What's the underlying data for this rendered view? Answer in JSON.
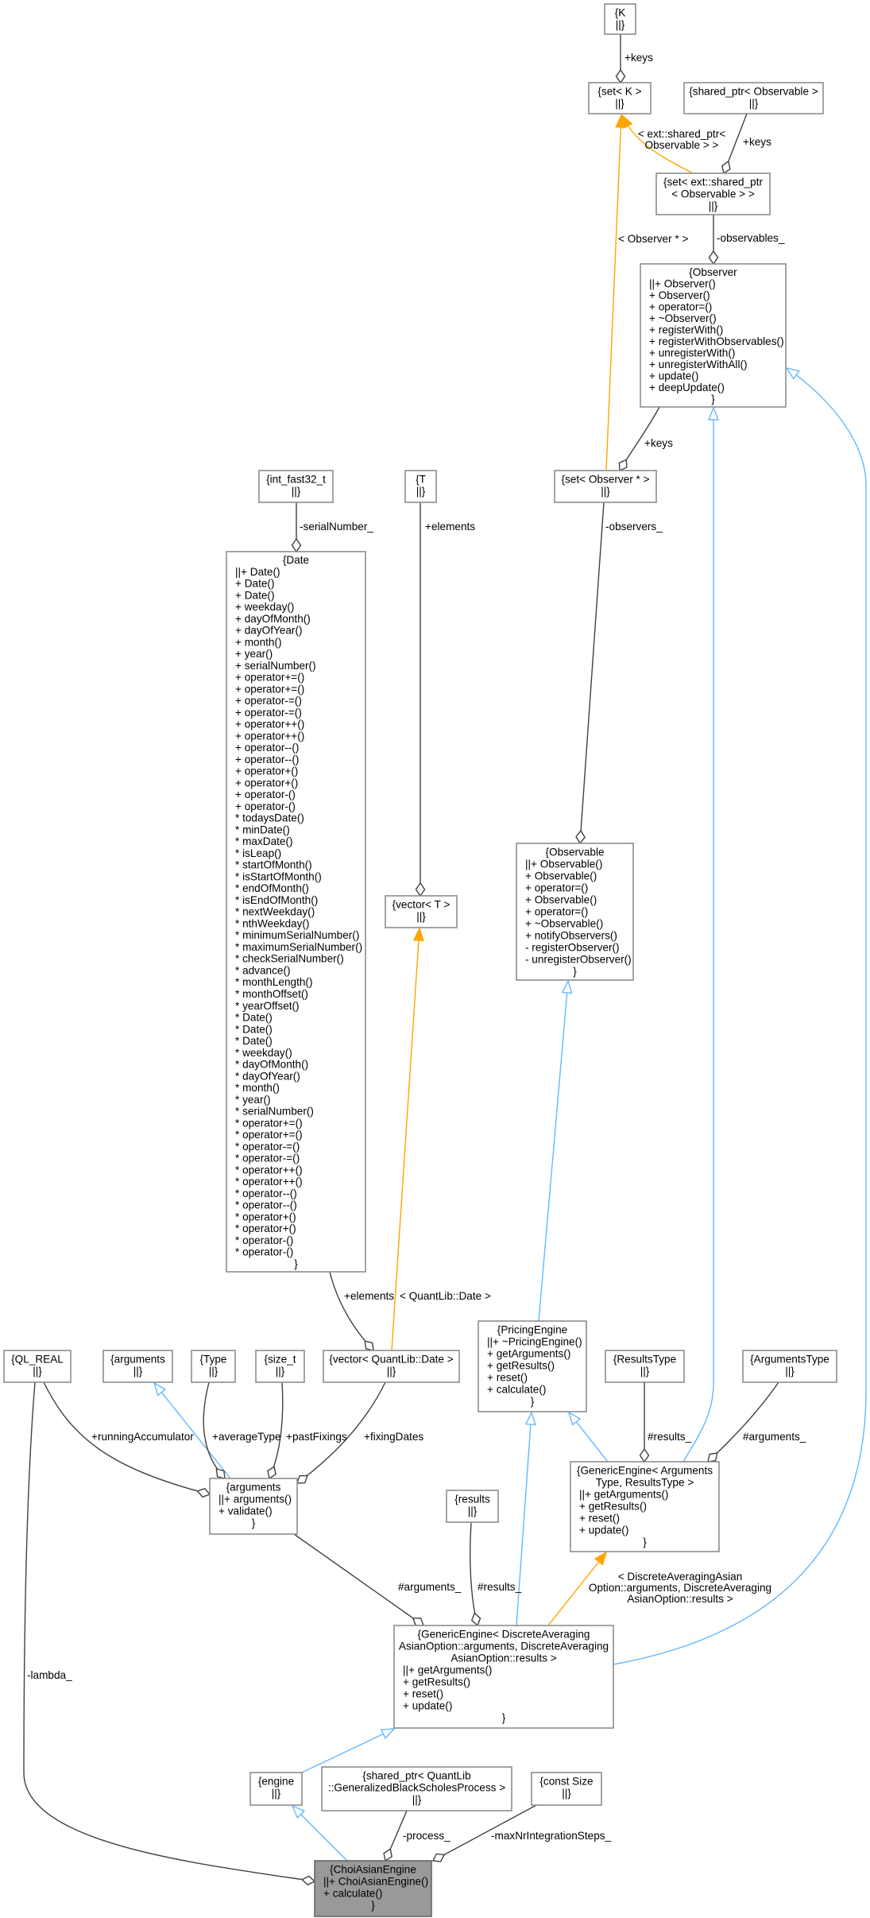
{
  "colors": {
    "composition": "#404040",
    "inheritance": "#63b8ff",
    "template": "#ffa500",
    "highlight_fill": "#999999",
    "node_border": "#8e8e8e"
  },
  "nodes": [
    {
      "id": "K",
      "title": [
        "{K"
      ],
      "members": [],
      "close": "||}"
    },
    {
      "id": "setK",
      "title": [
        "{set< K >"
      ],
      "members": [],
      "close": "||}"
    },
    {
      "id": "sharedObs",
      "title": [
        "{shared_ptr< Observable >"
      ],
      "members": [],
      "close": "||}"
    },
    {
      "id": "setExt",
      "title": [
        "{set< ext::shared_ptr",
        "< Observable > >"
      ],
      "members": [],
      "close": "||}"
    },
    {
      "id": "Observer",
      "title": [
        "{Observer"
      ],
      "members": [
        "||+ Observer()",
        "+ Observer()",
        "+ operator=()",
        "+ ~Observer()",
        "+ registerWith()",
        "+ registerWithObservables()",
        "+ unregisterWith()",
        "+ unregisterWithAll()",
        "+ update()",
        "+ deepUpdate()"
      ],
      "close": "}"
    },
    {
      "id": "intfast",
      "title": [
        "{int_fast32_t"
      ],
      "members": [],
      "close": "||}"
    },
    {
      "id": "T",
      "title": [
        "{T"
      ],
      "members": [],
      "close": "||}"
    },
    {
      "id": "setObsPtr",
      "title": [
        "{set< Observer * >"
      ],
      "members": [],
      "close": "||}"
    },
    {
      "id": "Date",
      "title": [
        "{Date"
      ],
      "members": [
        "||+ Date()",
        "+ Date()",
        "+ Date()",
        "+ weekday()",
        "+ dayOfMonth()",
        "+ dayOfYear()",
        "+ month()",
        "+ year()",
        "+ serialNumber()",
        "+ operator+=()",
        "+ operator+=()",
        "+ operator-=()",
        "+ operator-=()",
        "+ operator++()",
        "+ operator++()",
        "+ operator--()",
        "+ operator--()",
        "+ operator+()",
        "+ operator+()",
        "+ operator-()",
        "+ operator-()",
        "* todaysDate()",
        "* minDate()",
        "* maxDate()",
        "* isLeap()",
        "* startOfMonth()",
        "* isStartOfMonth()",
        "* endOfMonth()",
        "* isEndOfMonth()",
        "* nextWeekday()",
        "* nthWeekday()",
        "* minimumSerialNumber()",
        "* maximumSerialNumber()",
        "* checkSerialNumber()",
        "* advance()",
        "* monthLength()",
        "* monthOffset()",
        "* yearOffset()",
        "* Date()",
        "* Date()",
        "* Date()",
        "* weekday()",
        "* dayOfMonth()",
        "* dayOfYear()",
        "* month()",
        "* year()",
        "* serialNumber()",
        "* operator+=()",
        "* operator+=()",
        "* operator-=()",
        "* operator-=()",
        "* operator++()",
        "* operator++()",
        "* operator--()",
        "* operator--()",
        "* operator+()",
        "* operator+()",
        "* operator-()",
        "* operator-()"
      ],
      "close": "}"
    },
    {
      "id": "vectorT",
      "title": [
        "{vector< T >"
      ],
      "members": [],
      "close": "||}"
    },
    {
      "id": "Observable",
      "title": [
        "{Observable"
      ],
      "members": [
        "||+ Observable()",
        "+ Observable()",
        "+ operator=()",
        "+ Observable()",
        "+ operator=()",
        "+ ~Observable()",
        "+ notifyObservers()",
        "- registerObserver()",
        "- unregisterObserver()"
      ],
      "close": "}"
    },
    {
      "id": "QL_REAL",
      "title": [
        "{QL_REAL"
      ],
      "members": [],
      "close": "||}"
    },
    {
      "id": "argsSmall",
      "title": [
        "{arguments"
      ],
      "members": [],
      "close": "||}"
    },
    {
      "id": "Type",
      "title": [
        "{Type"
      ],
      "members": [],
      "close": "||}"
    },
    {
      "id": "size_t",
      "title": [
        "{size_t"
      ],
      "members": [],
      "close": "||}"
    },
    {
      "id": "vectorQD",
      "title": [
        "{vector< QuantLib::Date >"
      ],
      "members": [],
      "close": "||}"
    },
    {
      "id": "PricingEngine",
      "title": [
        "{PricingEngine"
      ],
      "members": [
        "||+ ~PricingEngine()",
        "+ getArguments()",
        "+ getResults()",
        "+ reset()",
        "+ calculate()"
      ],
      "close": "}"
    },
    {
      "id": "ResultsType",
      "title": [
        "{ResultsType"
      ],
      "members": [],
      "close": "||}"
    },
    {
      "id": "ArgumentsType",
      "title": [
        "{ArgumentsType"
      ],
      "members": [],
      "close": "||}"
    },
    {
      "id": "argsMain",
      "title": [
        "{arguments"
      ],
      "members": [
        "||+ arguments()",
        "+ validate()"
      ],
      "close": "}"
    },
    {
      "id": "GEAR",
      "title": [
        "{GenericEngine< Arguments",
        "Type, ResultsType >"
      ],
      "members": [
        "||+ getArguments()",
        "+ getResults()",
        "+ reset()",
        "+ update()"
      ],
      "close": "}"
    },
    {
      "id": "results",
      "title": [
        "{results"
      ],
      "members": [],
      "close": "||}"
    },
    {
      "id": "GED",
      "title": [
        "{GenericEngine< DiscreteAveraging",
        "AsianOption::arguments, DiscreteAveraging",
        "AsianOption::results >"
      ],
      "members": [
        "||+ getArguments()",
        "+ getResults()",
        "+ reset()",
        "+ update()"
      ],
      "close": "}"
    },
    {
      "id": "engine",
      "title": [
        "{engine"
      ],
      "members": [],
      "close": "||}"
    },
    {
      "id": "process",
      "title": [
        "{shared_ptr< QuantLib",
        "::GeneralizedBlackScholesProcess >"
      ],
      "members": [],
      "close": "||}"
    },
    {
      "id": "constSize",
      "title": [
        "{const Size"
      ],
      "members": [],
      "close": "||}"
    },
    {
      "id": "Choi",
      "title": [
        "{ChoiAsianEngine"
      ],
      "members": [
        "||+ ChoiAsianEngine()",
        "+ calculate()"
      ],
      "close": "}",
      "highlight": true
    }
  ],
  "edges": [
    {
      "from": "K",
      "to": "setK",
      "type": "composition",
      "label": [
        "+keys"
      ]
    },
    {
      "from": "sharedObs",
      "to": "setExt",
      "type": "composition",
      "label": [
        "+keys"
      ]
    },
    {
      "from": "setExt",
      "to": "setK",
      "type": "template",
      "label": [
        "< ext::shared_ptr<",
        "Observable > >"
      ]
    },
    {
      "from": "setExt",
      "to": "Observer",
      "type": "composition",
      "label": [
        "-observables_"
      ]
    },
    {
      "from": "setObsPtr",
      "to": "setK",
      "type": "template",
      "label": [
        "< Observer * >"
      ]
    },
    {
      "from": "Observer",
      "to": "setObsPtr",
      "type": "composition",
      "label": [
        "+keys"
      ]
    },
    {
      "from": "setObsPtr",
      "to": "Observable",
      "type": "composition",
      "label": [
        "-observers_"
      ]
    },
    {
      "from": "intfast",
      "to": "Date",
      "type": "composition",
      "label": [
        "-serialNumber_"
      ]
    },
    {
      "from": "T",
      "to": "vectorT",
      "type": "composition",
      "label": [
        "+elements"
      ]
    },
    {
      "from": "vectorQD",
      "to": "vectorT",
      "type": "template",
      "label": [
        "< QuantLib::Date >"
      ]
    },
    {
      "from": "Date",
      "to": "vectorQD",
      "type": "composition",
      "label": [
        "+elements"
      ]
    },
    {
      "from": "PricingEngine",
      "to": "Observable",
      "type": "inheritance",
      "label": []
    },
    {
      "from": "GEAR",
      "to": "PricingEngine",
      "type": "inheritance",
      "label": []
    },
    {
      "from": "ResultsType",
      "to": "GEAR",
      "type": "composition",
      "label": [
        "#results_"
      ]
    },
    {
      "from": "ArgumentsType",
      "to": "GEAR",
      "type": "composition",
      "label": [
        "#arguments_"
      ]
    },
    {
      "from": "GEAR",
      "to": "Observer",
      "type": "inheritance",
      "label": []
    },
    {
      "from": "QL_REAL",
      "to": "argsMain",
      "type": "composition",
      "label": [
        "+runningAccumulator"
      ]
    },
    {
      "from": "argsMain",
      "to": "argsSmall",
      "type": "inheritance",
      "label": []
    },
    {
      "from": "Type",
      "to": "argsMain",
      "type": "composition",
      "label": [
        "+averageType"
      ]
    },
    {
      "from": "size_t",
      "to": "argsMain",
      "type": "composition",
      "label": [
        "+pastFixings"
      ]
    },
    {
      "from": "vectorQD",
      "to": "argsMain",
      "type": "composition",
      "label": [
        "+fixingDates"
      ]
    },
    {
      "from": "argsMain",
      "to": "GED",
      "type": "composition",
      "label": [
        "#arguments_"
      ]
    },
    {
      "from": "results",
      "to": "GED",
      "type": "composition",
      "label": [
        "#results_"
      ]
    },
    {
      "from": "GED",
      "to": "PricingEngine",
      "type": "inheritance",
      "label": []
    },
    {
      "from": "GED",
      "to": "GEAR",
      "type": "template",
      "label": [
        "< DiscreteAveragingAsian",
        "Option::arguments, DiscreteAveraging",
        "AsianOption::results >"
      ]
    },
    {
      "from": "GED",
      "to": "Observer",
      "type": "inheritance",
      "label": []
    },
    {
      "from": "engine",
      "to": "GED",
      "type": "inheritance",
      "label": []
    },
    {
      "from": "Choi",
      "to": "engine",
      "type": "inheritance",
      "label": []
    },
    {
      "from": "process",
      "to": "Choi",
      "type": "composition",
      "label": [
        "-process_"
      ]
    },
    {
      "from": "constSize",
      "to": "Choi",
      "type": "composition",
      "label": [
        "-maxNrIntegrationSteps_"
      ]
    },
    {
      "from": "QL_REAL",
      "to": "Choi",
      "type": "composition",
      "label": [
        "-lambda_"
      ]
    }
  ]
}
